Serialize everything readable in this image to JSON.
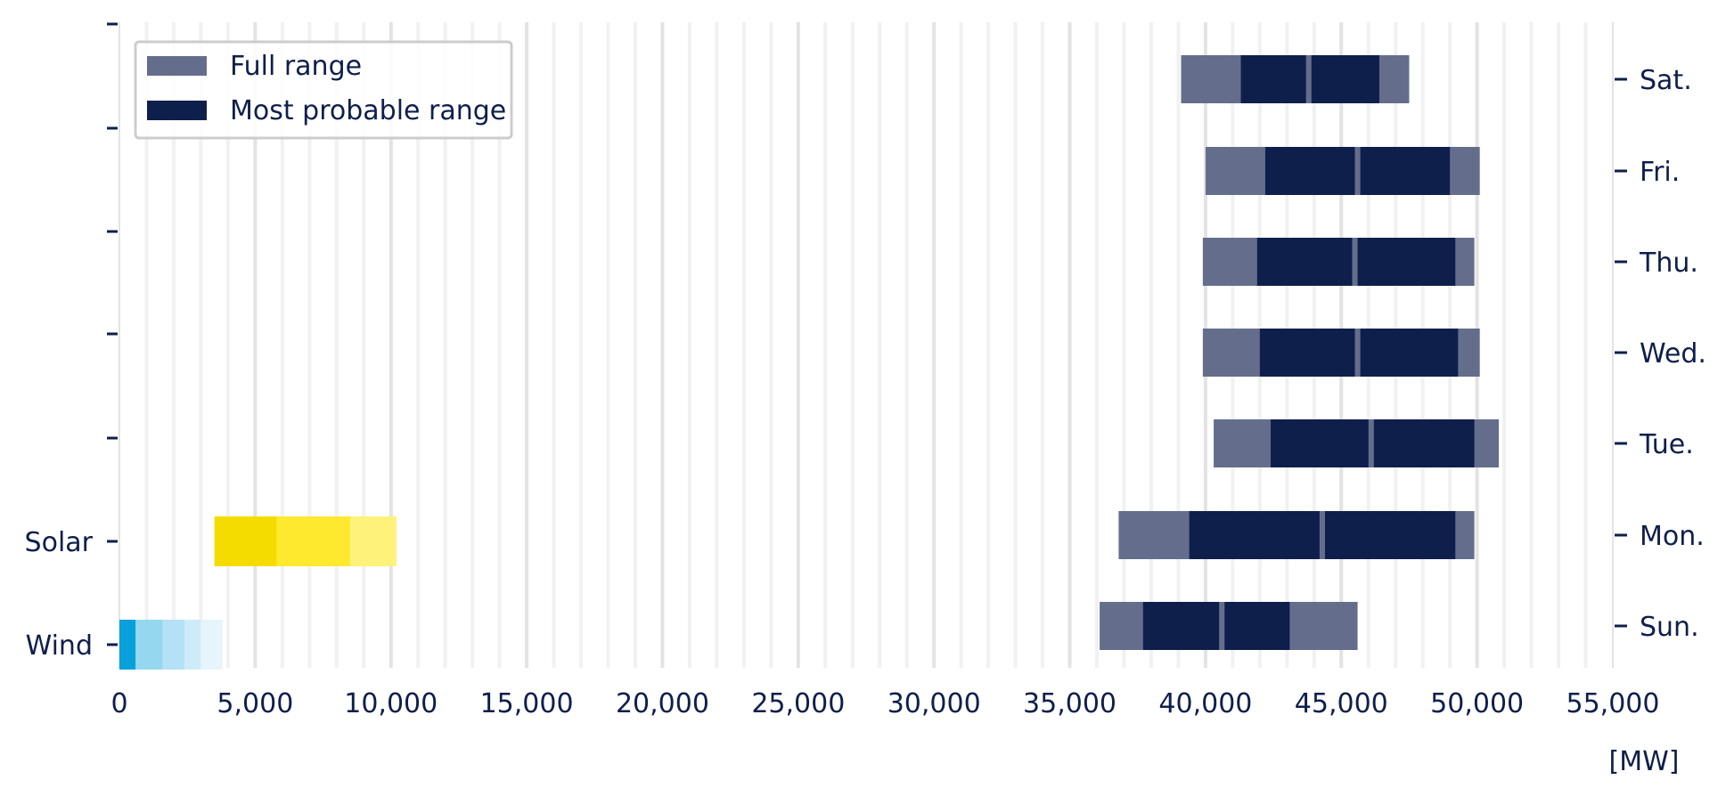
{
  "chart_data": {
    "type": "bar",
    "orientation": "horizontal-range",
    "title": "",
    "xlabel": "",
    "x_unit": "[MW]",
    "xlim": [
      0,
      55000
    ],
    "x_tick_step": 5000,
    "x_minor_step": 1000,
    "x_tick_labels": [
      "0",
      "5,000",
      "10,000",
      "15,000",
      "20,000",
      "25,000",
      "30,000",
      "35,000",
      "40,000",
      "45,000",
      "50,000",
      "55,000"
    ],
    "grid": "vertical",
    "legend": {
      "position": "top-left",
      "entries": [
        {
          "label": "Full range",
          "color": "#646e8c"
        },
        {
          "label": "Most probable range",
          "color": "#0f1f4b"
        }
      ]
    },
    "left_axis_labels": [
      "Solar",
      "Wind"
    ],
    "right_axis_labels": [
      "Sat.",
      "Fri.",
      "Thu.",
      "Wed.",
      "Tue.",
      "Mon.",
      "Sun."
    ],
    "renewables": [
      {
        "name": "Solar",
        "segments": [
          {
            "from": 3500,
            "to": 5800,
            "color": "#f5dc00"
          },
          {
            "from": 5800,
            "to": 8500,
            "color": "#ffe92e"
          },
          {
            "from": 8500,
            "to": 10200,
            "color": "#fff27a"
          }
        ]
      },
      {
        "name": "Wind",
        "segments": [
          {
            "from": 0,
            "to": 600,
            "color": "#0aa0dc"
          },
          {
            "from": 600,
            "to": 1600,
            "color": "#96d7f0"
          },
          {
            "from": 1600,
            "to": 2400,
            "color": "#b4e1f5"
          },
          {
            "from": 2400,
            "to": 3000,
            "color": "#cdebf8"
          },
          {
            "from": 3000,
            "to": 3800,
            "color": "#e6f5fc"
          }
        ]
      }
    ],
    "load_ranges": [
      {
        "day": "Sat.",
        "full_min": 39100,
        "full_max": 47500,
        "probable": [
          [
            41300,
            43700
          ],
          [
            43900,
            46400
          ]
        ]
      },
      {
        "day": "Fri.",
        "full_min": 40000,
        "full_max": 50100,
        "probable": [
          [
            42200,
            45500
          ],
          [
            45700,
            49000
          ]
        ]
      },
      {
        "day": "Thu.",
        "full_min": 39900,
        "full_max": 49900,
        "probable": [
          [
            41900,
            45400
          ],
          [
            45600,
            49200
          ]
        ]
      },
      {
        "day": "Wed.",
        "full_min": 39900,
        "full_max": 50100,
        "probable": [
          [
            42000,
            45500
          ],
          [
            45700,
            49300
          ]
        ]
      },
      {
        "day": "Tue.",
        "full_min": 40300,
        "full_max": 50800,
        "probable": [
          [
            42400,
            46000
          ],
          [
            46200,
            49900
          ]
        ]
      },
      {
        "day": "Mon.",
        "full_min": 36800,
        "full_max": 49900,
        "probable": [
          [
            39400,
            44200
          ],
          [
            44400,
            49200
          ]
        ]
      },
      {
        "day": "Sun.",
        "full_min": 36100,
        "full_max": 45600,
        "probable": [
          [
            37700,
            40500
          ],
          [
            40700,
            43100
          ]
        ]
      }
    ]
  }
}
